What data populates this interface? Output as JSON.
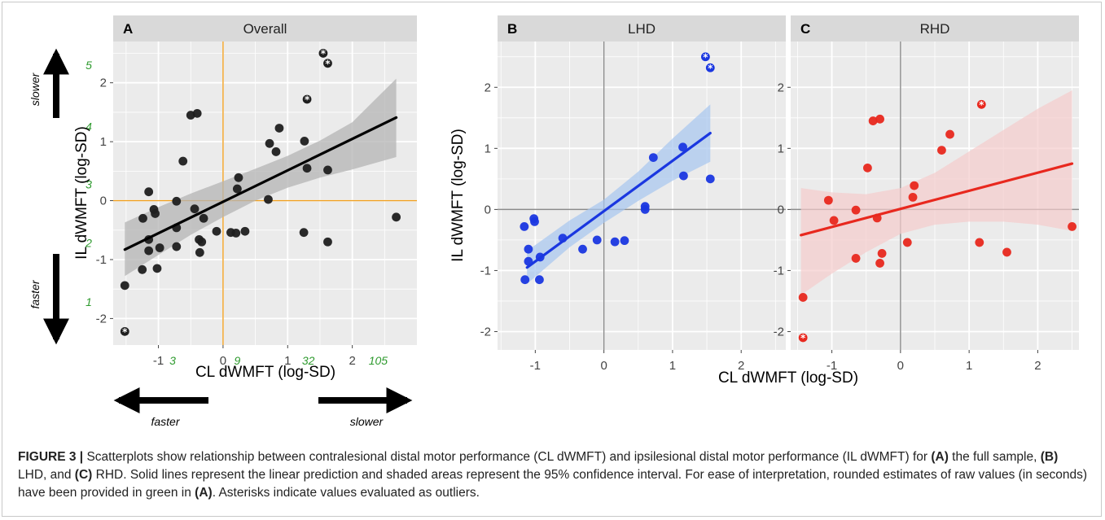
{
  "figure": {
    "label": "FIGURE 3 |",
    "caption_parts": [
      {
        "text": " Scatterplots show relationship between contralesional distal motor performance (CL dWMFT) and ipsilesional distal motor performance (IL dWMFT) for ",
        "bold": false
      },
      {
        "text": "(A)",
        "bold": true
      },
      {
        "text": " the full sample, ",
        "bold": false
      },
      {
        "text": "(B)",
        "bold": true
      },
      {
        "text": " LHD, and ",
        "bold": false
      },
      {
        "text": "(C)",
        "bold": true
      },
      {
        "text": " RHD. Solid lines represent the linear prediction and shaded areas represent the 95% confidence interval. For ease of interpretation, rounded estimates of raw values (in seconds) have been provided in green in ",
        "bold": false
      },
      {
        "text": "(A)",
        "bold": true
      },
      {
        "text": ". Asterisks indicate values evaluated as outliers.",
        "bold": false
      }
    ]
  },
  "colors": {
    "panel_bg": "#ebebeb",
    "strip_bg": "#d9d9d9",
    "grid": "#ffffff",
    "black_point": "#1f1f1f",
    "blue": "#1a37e0",
    "blue_band": "#a6c6f0",
    "red": "#e8281e",
    "red_band": "#f5cccc",
    "gray_band": "#b4b4b4",
    "orange_ref": "#f0a020",
    "gray_ref": "#8a8a8a",
    "green_text": "#2e9a2e"
  },
  "chart_data": [
    {
      "panel_letter": "A",
      "title": "Overall",
      "type": "scatter",
      "xlabel": "CL dWMFT (log-SD)",
      "ylabel": "IL dWMFT (log-SD)",
      "xlim": [
        -1.7,
        3.0
      ],
      "ylim": [
        -2.45,
        2.7
      ],
      "xticks": [
        -1,
        0,
        1,
        2
      ],
      "yticks": [
        -2,
        -1,
        0,
        1,
        2
      ],
      "reference_lines": {
        "x": 0,
        "y": 0,
        "color": "#f0a020"
      },
      "raw_x_labels": [
        {
          "x": -0.78,
          "text": "3"
        },
        {
          "x": 0.22,
          "text": "9"
        },
        {
          "x": 1.32,
          "text": "32"
        },
        {
          "x": 2.4,
          "text": "105"
        }
      ],
      "raw_y_labels": [
        {
          "y": 2.3,
          "text": "5"
        },
        {
          "y": 1.26,
          "text": "4"
        },
        {
          "y": 0.28,
          "text": "3"
        },
        {
          "y": -0.72,
          "text": "2"
        },
        {
          "y": -1.72,
          "text": "1"
        }
      ],
      "direction_labels": {
        "y_up": "slower",
        "y_down": "faster",
        "x_left": "faster",
        "x_right": "slower"
      },
      "fit": {
        "x": [
          -1.52,
          2.68
        ],
        "y": [
          -0.83,
          1.41
        ]
      },
      "ci_band": {
        "x": [
          -1.52,
          -1.0,
          -0.5,
          0.0,
          0.5,
          1.0,
          1.5,
          2.0,
          2.68
        ],
        "lower": [
          -1.28,
          -0.92,
          -0.58,
          -0.28,
          0.0,
          0.22,
          0.39,
          0.53,
          0.74
        ],
        "upper": [
          -0.37,
          -0.11,
          0.12,
          0.33,
          0.54,
          0.76,
          1.02,
          1.33,
          2.07
        ]
      },
      "points": [
        {
          "x": -1.52,
          "y": -1.44
        },
        {
          "x": -1.24,
          "y": -0.3
        },
        {
          "x": -1.25,
          "y": -1.17
        },
        {
          "x": -1.15,
          "y": 0.15
        },
        {
          "x": -1.15,
          "y": -0.66
        },
        {
          "x": -1.15,
          "y": -0.85
        },
        {
          "x": -1.07,
          "y": -0.15
        },
        {
          "x": -1.05,
          "y": -0.22
        },
        {
          "x": -1.02,
          "y": -1.15
        },
        {
          "x": -0.98,
          "y": -0.8
        },
        {
          "x": -0.72,
          "y": -0.78
        },
        {
          "x": -0.72,
          "y": -0.01
        },
        {
          "x": -0.72,
          "y": -0.46
        },
        {
          "x": -0.62,
          "y": 0.67
        },
        {
          "x": -0.5,
          "y": 1.45
        },
        {
          "x": -0.44,
          "y": -0.14
        },
        {
          "x": -0.4,
          "y": 1.48
        },
        {
          "x": -0.37,
          "y": -0.66
        },
        {
          "x": -0.36,
          "y": -0.88
        },
        {
          "x": -0.33,
          "y": -0.7
        },
        {
          "x": -0.3,
          "y": -0.3
        },
        {
          "x": -0.1,
          "y": -0.52
        },
        {
          "x": 0.12,
          "y": -0.54
        },
        {
          "x": 0.2,
          "y": -0.55
        },
        {
          "x": 0.22,
          "y": 0.2
        },
        {
          "x": 0.24,
          "y": 0.39
        },
        {
          "x": 0.34,
          "y": -0.52
        },
        {
          "x": 0.7,
          "y": 0.02
        },
        {
          "x": 0.72,
          "y": 0.97
        },
        {
          "x": 0.82,
          "y": 0.83
        },
        {
          "x": 0.87,
          "y": 1.23
        },
        {
          "x": 1.25,
          "y": -0.54
        },
        {
          "x": 1.26,
          "y": 1.01
        },
        {
          "x": 1.3,
          "y": 0.55
        },
        {
          "x": 1.62,
          "y": 0.52
        },
        {
          "x": 1.62,
          "y": -0.7
        },
        {
          "x": 2.68,
          "y": -0.28
        }
      ],
      "outliers": [
        {
          "x": -1.52,
          "y": -2.22
        },
        {
          "x": 1.3,
          "y": 1.72
        },
        {
          "x": 1.55,
          "y": 2.5
        },
        {
          "x": 1.62,
          "y": 2.33
        }
      ]
    },
    {
      "panel_letter": "B",
      "title": "LHD",
      "type": "scatter",
      "xlabel": "CL dWMFT (log-SD)",
      "ylabel": "IL dWMFT (log-SD)",
      "xlim": [
        -1.55,
        2.65
      ],
      "ylim": [
        -2.3,
        2.75
      ],
      "xticks": [
        -1,
        0,
        1,
        2
      ],
      "yticks": [
        -2,
        -1,
        0,
        1,
        2
      ],
      "reference_lines": {
        "x": 0,
        "y": 0,
        "color": "#8a8a8a"
      },
      "fit": {
        "x": [
          -1.12,
          1.55
        ],
        "y": [
          -0.95,
          1.25
        ]
      },
      "ci_band": {
        "x": [
          -1.12,
          -0.5,
          0.0,
          0.5,
          1.0,
          1.55
        ],
        "lower": [
          -1.22,
          -0.62,
          -0.22,
          0.14,
          0.47,
          0.78
        ],
        "upper": [
          -0.68,
          -0.18,
          0.16,
          0.62,
          1.16,
          1.72
        ]
      },
      "points": [
        {
          "x": -1.16,
          "y": -0.28
        },
        {
          "x": -1.15,
          "y": -1.15
        },
        {
          "x": -1.1,
          "y": -0.65
        },
        {
          "x": -1.1,
          "y": -0.85
        },
        {
          "x": -1.02,
          "y": -0.15
        },
        {
          "x": -1.01,
          "y": -0.2
        },
        {
          "x": -0.93,
          "y": -0.78
        },
        {
          "x": -0.94,
          "y": -1.15
        },
        {
          "x": -0.6,
          "y": -0.47
        },
        {
          "x": -0.31,
          "y": -0.65
        },
        {
          "x": -0.1,
          "y": -0.5
        },
        {
          "x": 0.16,
          "y": -0.53
        },
        {
          "x": 0.3,
          "y": -0.51
        },
        {
          "x": 0.6,
          "y": 0.05
        },
        {
          "x": 0.6,
          "y": 0.0
        },
        {
          "x": 0.72,
          "y": 0.85
        },
        {
          "x": 1.15,
          "y": 1.02
        },
        {
          "x": 1.16,
          "y": 0.55
        },
        {
          "x": 1.55,
          "y": 0.5
        }
      ],
      "outliers": [
        {
          "x": 1.48,
          "y": 2.5
        },
        {
          "x": 1.55,
          "y": 2.32
        }
      ]
    },
    {
      "panel_letter": "C",
      "title": "RHD",
      "type": "scatter",
      "xlabel": "CL dWMFT (log-SD)",
      "ylabel": "IL dWMFT (log-SD)",
      "xlim": [
        -1.6,
        2.6
      ],
      "ylim": [
        -2.3,
        2.75
      ],
      "xticks": [
        -1,
        0,
        1,
        2
      ],
      "yticks": [
        -2,
        -1,
        0,
        1,
        2
      ],
      "reference_lines": {
        "x": 0,
        "y": 0,
        "color": "#8a8a8a"
      },
      "fit": {
        "x": [
          -1.45,
          2.5
        ],
        "y": [
          -0.42,
          0.75
        ]
      },
      "ci_band": {
        "x": [
          -1.45,
          -1.0,
          -0.5,
          0.0,
          0.5,
          1.0,
          1.5,
          2.0,
          2.5
        ],
        "lower": [
          -1.4,
          -1.05,
          -0.7,
          -0.4,
          -0.25,
          -0.2,
          -0.2,
          -0.25,
          -0.35
        ],
        "upper": [
          0.35,
          0.28,
          0.25,
          0.35,
          0.6,
          0.95,
          1.3,
          1.65,
          1.95
        ]
      },
      "points": [
        {
          "x": -1.42,
          "y": -1.44
        },
        {
          "x": -1.05,
          "y": 0.15
        },
        {
          "x": -0.97,
          "y": -0.18
        },
        {
          "x": -0.65,
          "y": -0.01
        },
        {
          "x": -0.65,
          "y": -0.8
        },
        {
          "x": -0.48,
          "y": 0.68
        },
        {
          "x": -0.4,
          "y": 1.45
        },
        {
          "x": -0.34,
          "y": -0.14
        },
        {
          "x": -0.3,
          "y": 1.48
        },
        {
          "x": -0.3,
          "y": -0.88
        },
        {
          "x": -0.27,
          "y": -0.72
        },
        {
          "x": 0.1,
          "y": -0.54
        },
        {
          "x": 0.18,
          "y": 0.2
        },
        {
          "x": 0.2,
          "y": 0.39
        },
        {
          "x": 0.6,
          "y": 0.97
        },
        {
          "x": 0.72,
          "y": 1.23
        },
        {
          "x": 1.15,
          "y": -0.54
        },
        {
          "x": 1.55,
          "y": -0.7
        },
        {
          "x": 2.5,
          "y": -0.28
        }
      ],
      "outliers": [
        {
          "x": -1.42,
          "y": -2.1
        },
        {
          "x": 1.18,
          "y": 1.72
        }
      ]
    }
  ]
}
